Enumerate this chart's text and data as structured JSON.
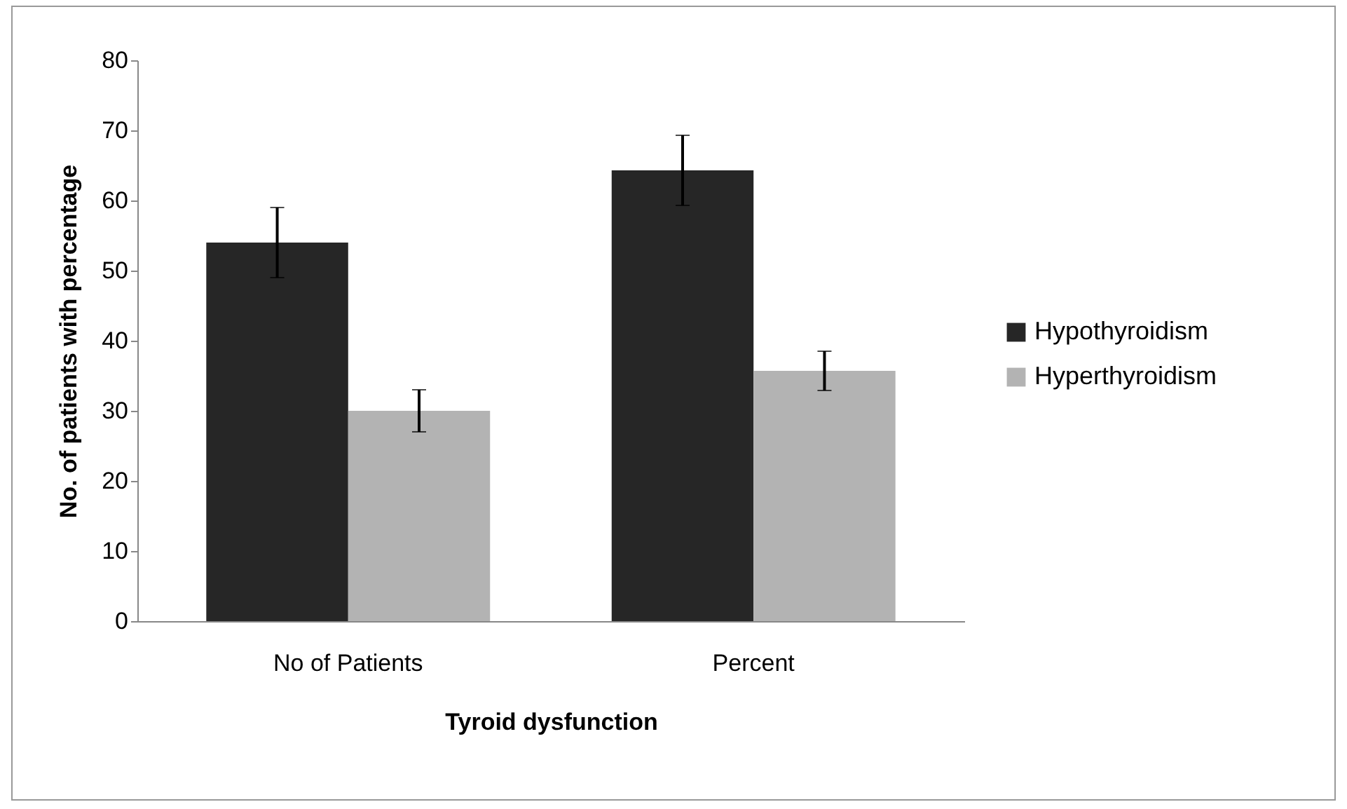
{
  "chart_data": {
    "type": "bar",
    "xlabel": "Tyroid dysfunction",
    "ylabel": "No. of patients with percentage",
    "categories": [
      "No of Patients",
      "Percent"
    ],
    "series": [
      {
        "name": "Hypothyroidism",
        "color": "#262626",
        "values": [
          54,
          64.3
        ],
        "errors": [
          5,
          5
        ]
      },
      {
        "name": "Hyperthyroidism",
        "color": "#b3b3b3",
        "values": [
          30,
          35.7
        ],
        "errors": [
          3,
          2.8
        ]
      }
    ],
    "ylim": [
      0,
      80
    ],
    "yticks": [
      0,
      10,
      20,
      30,
      40,
      50,
      60,
      70,
      80
    ],
    "grid": false,
    "legend": "right"
  }
}
